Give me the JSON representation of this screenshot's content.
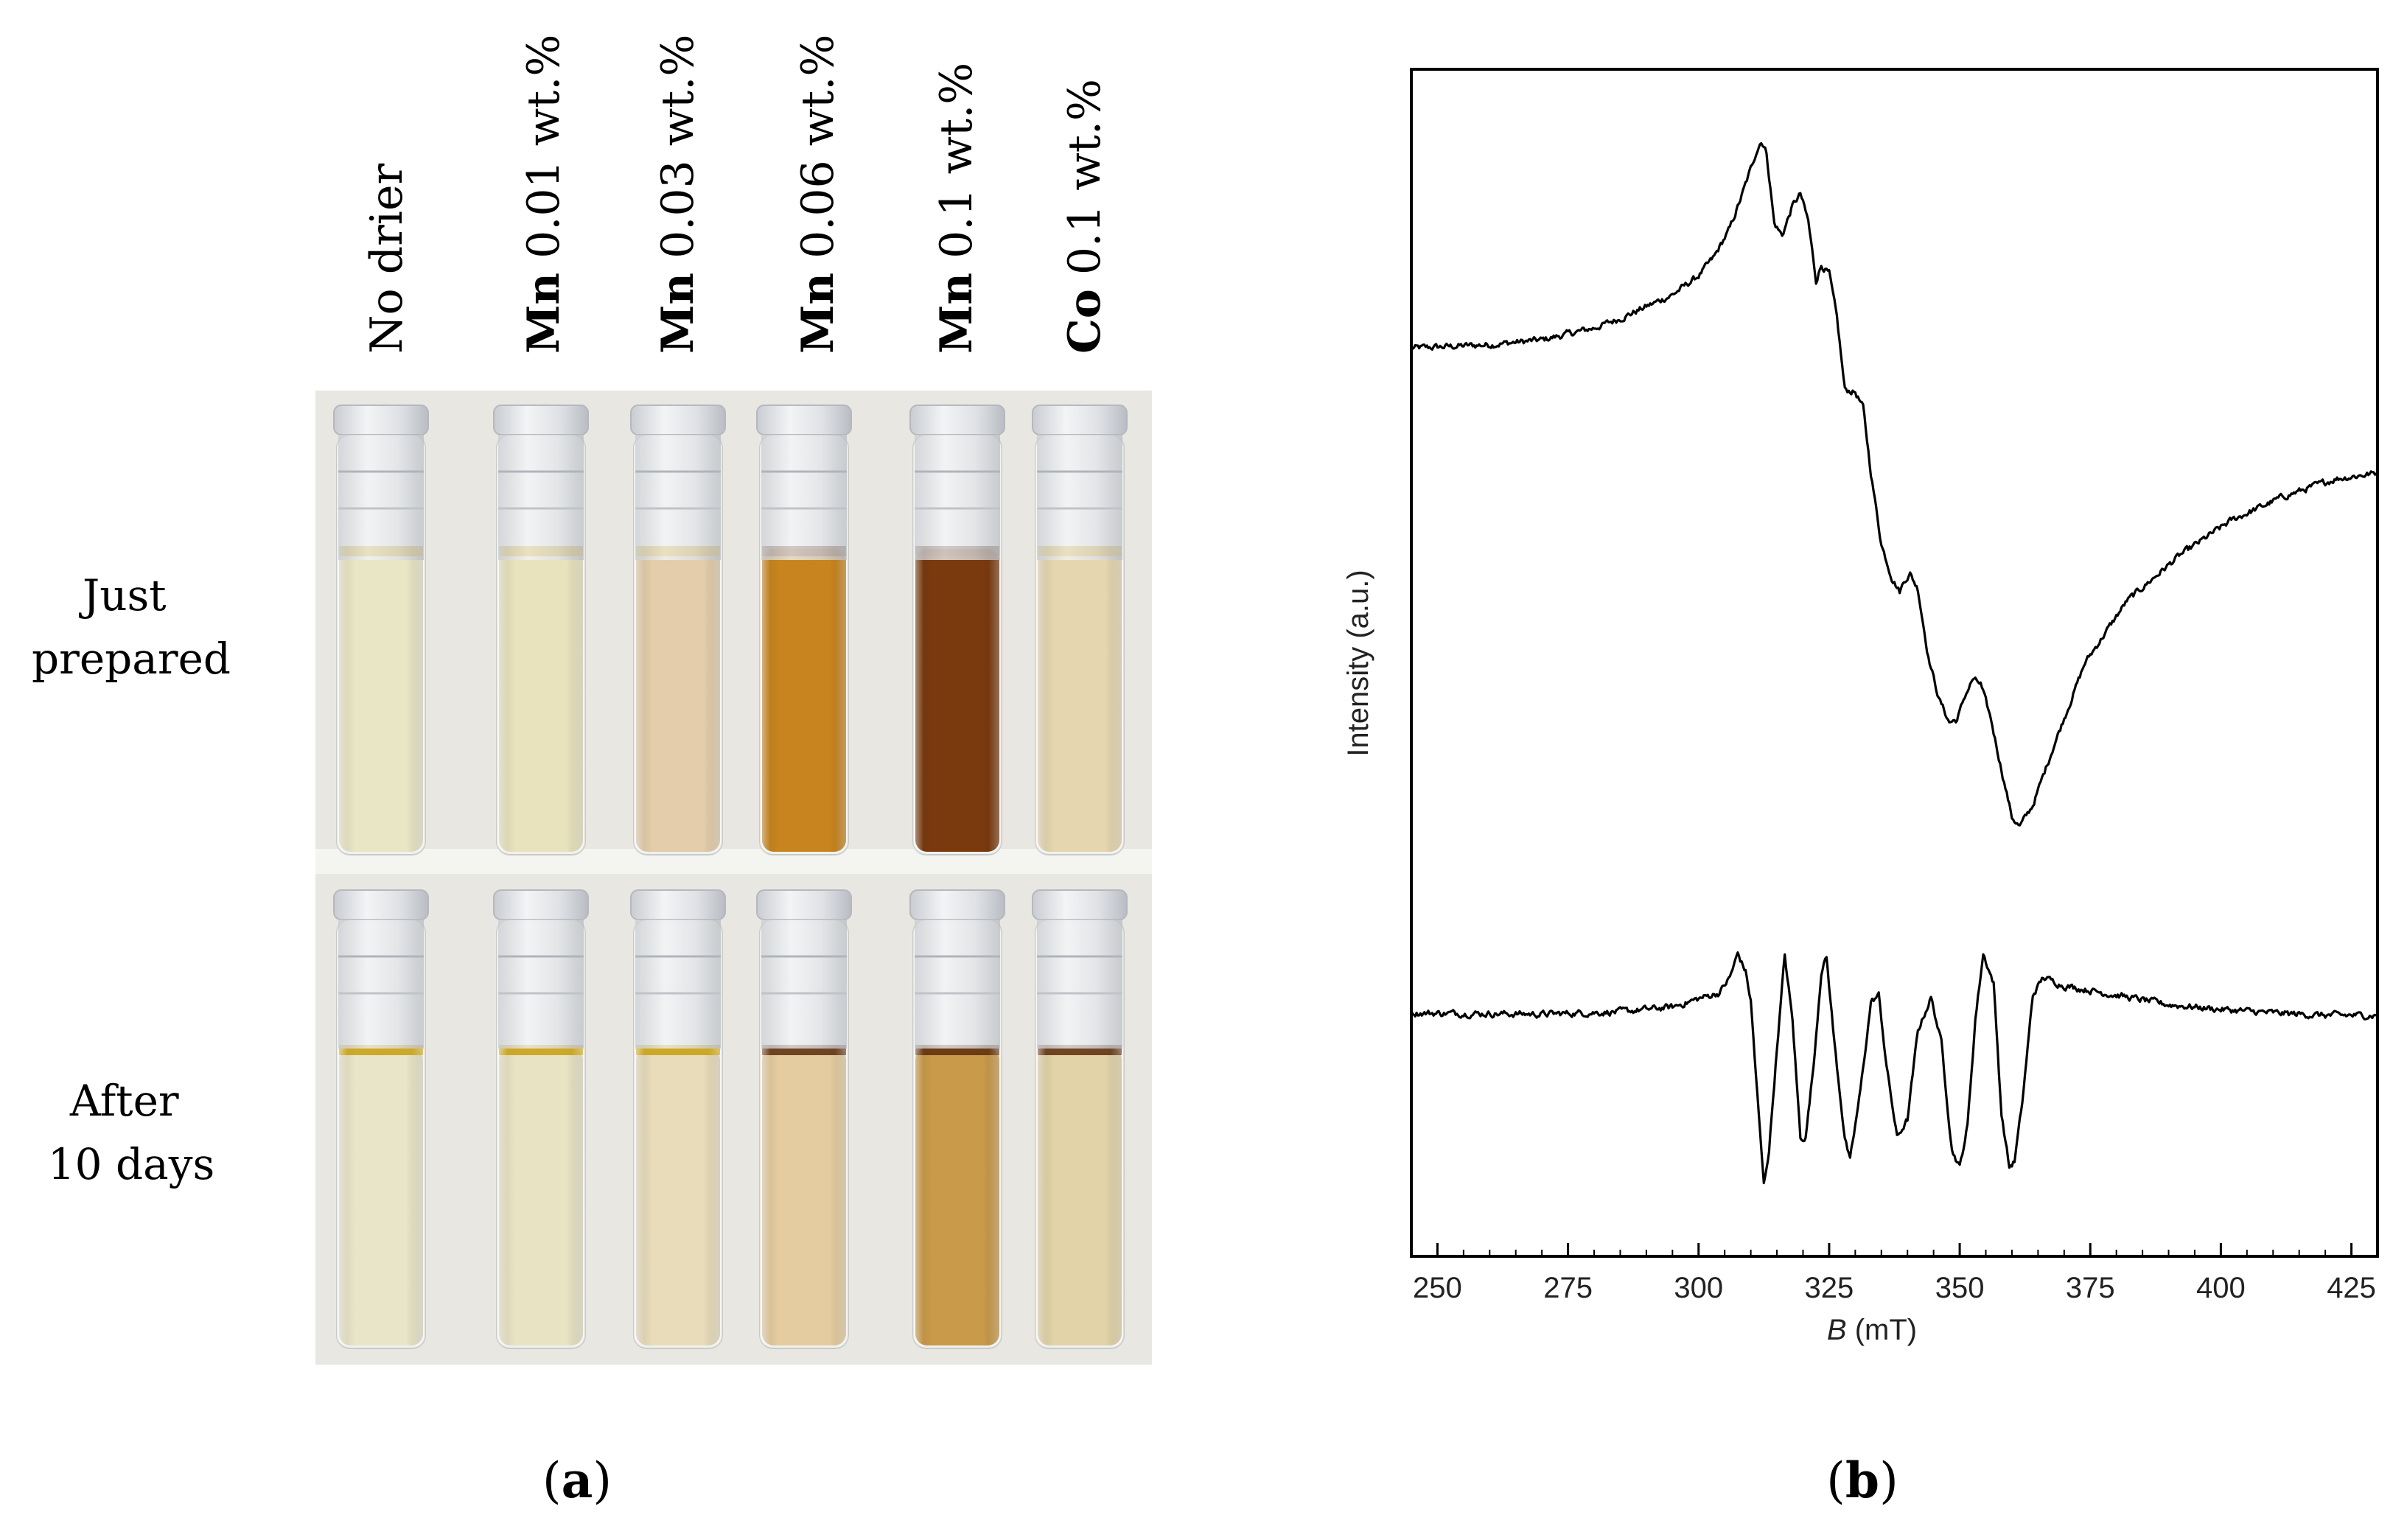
{
  "panel_a": {
    "caption_open": "(",
    "caption_letter": "a",
    "caption_close": ")",
    "columns": [
      {
        "bold": "",
        "text": "No drier"
      },
      {
        "bold": "Mn",
        "text": " 0.01 wt.%"
      },
      {
        "bold": "Mn",
        "text": " 0.03 wt.%"
      },
      {
        "bold": "Mn",
        "text": " 0.06 wt.%"
      },
      {
        "bold": "Mn",
        "text": " 0.1 wt.%"
      },
      {
        "bold": "Co",
        "text": " 0.1 wt.%"
      }
    ],
    "rows": [
      {
        "line1": "Just",
        "line2": "prepared"
      },
      {
        "line1": "After",
        "line2": "10 days"
      }
    ],
    "colors": {
      "photo_background": "#e8e7e1",
      "meniscus": "#c9a21a",
      "just_prepared_liquids": [
        "#e9e6c6",
        "#e8e3bd",
        "#e3cdaa",
        "#c8851f",
        "#7a3a0e",
        "#e6d6b0"
      ],
      "after_10_days_liquids": [
        "#e8e5c8",
        "#e8e3c3",
        "#e8dcbb",
        "#e5cca0",
        "#c99a4a",
        "#e2d3a8"
      ]
    }
  },
  "panel_b": {
    "caption_open": "(",
    "caption_letter": "b",
    "caption_close": ")"
  },
  "chart_data": {
    "type": "line",
    "title": "",
    "xlabel_italic": "B",
    "xlabel_unit": " (mT)",
    "ylabel": "Intensity (a.u.)",
    "xlim": [
      245,
      430
    ],
    "ylim": [
      0,
      1
    ],
    "xticks": [
      250,
      275,
      300,
      325,
      350,
      375,
      400,
      425
    ],
    "x_minor_step": 5,
    "grid": false,
    "series": [
      {
        "name": "upper spectrum",
        "noise": 0.005,
        "points": [
          [
            245,
            0.765
          ],
          [
            260,
            0.768
          ],
          [
            270,
            0.772
          ],
          [
            280,
            0.782
          ],
          [
            285,
            0.79
          ],
          [
            290,
            0.8
          ],
          [
            295,
            0.81
          ],
          [
            300,
            0.826
          ],
          [
            303,
            0.842
          ],
          [
            306,
            0.866
          ],
          [
            308,
            0.89
          ],
          [
            310,
            0.916
          ],
          [
            311,
            0.93
          ],
          [
            312,
            0.94
          ],
          [
            313,
            0.93
          ],
          [
            314.5,
            0.87
          ],
          [
            316,
            0.86
          ],
          [
            318,
            0.885
          ],
          [
            319.5,
            0.895
          ],
          [
            321,
            0.872
          ],
          [
            322.5,
            0.822
          ],
          [
            323.5,
            0.835
          ],
          [
            325,
            0.828
          ],
          [
            326.5,
            0.79
          ],
          [
            328,
            0.73
          ],
          [
            330,
            0.728
          ],
          [
            331.5,
            0.715
          ],
          [
            333,
            0.66
          ],
          [
            335,
            0.6
          ],
          [
            337,
            0.572
          ],
          [
            338.5,
            0.56
          ],
          [
            339.5,
            0.57
          ],
          [
            340.5,
            0.575
          ],
          [
            342,
            0.562
          ],
          [
            344,
            0.505
          ],
          [
            346,
            0.47
          ],
          [
            348,
            0.45
          ],
          [
            349.5,
            0.452
          ],
          [
            351,
            0.472
          ],
          [
            352.5,
            0.486
          ],
          [
            354,
            0.482
          ],
          [
            356,
            0.452
          ],
          [
            358,
            0.41
          ],
          [
            360,
            0.37
          ],
          [
            361.5,
            0.362
          ],
          [
            364,
            0.38
          ],
          [
            368,
            0.43
          ],
          [
            374,
            0.5
          ],
          [
            382,
            0.552
          ],
          [
            392,
            0.59
          ],
          [
            402,
            0.62
          ],
          [
            412,
            0.64
          ],
          [
            422,
            0.655
          ],
          [
            430,
            0.66
          ]
        ]
      },
      {
        "name": "lower spectrum",
        "noise": 0.005,
        "points": [
          [
            245,
            0.205
          ],
          [
            270,
            0.204
          ],
          [
            285,
            0.206
          ],
          [
            295,
            0.21
          ],
          [
            300,
            0.217
          ],
          [
            304,
            0.222
          ],
          [
            306,
            0.235
          ],
          [
            307.5,
            0.255
          ],
          [
            309,
            0.24
          ],
          [
            310,
            0.215
          ],
          [
            311.5,
            0.12
          ],
          [
            312.5,
            0.06
          ],
          [
            313.5,
            0.09
          ],
          [
            315,
            0.175
          ],
          [
            316.5,
            0.253
          ],
          [
            318,
            0.198
          ],
          [
            319.5,
            0.1
          ],
          [
            320.5,
            0.1
          ],
          [
            322,
            0.16
          ],
          [
            323.5,
            0.24
          ],
          [
            324.5,
            0.252
          ],
          [
            326,
            0.18
          ],
          [
            328,
            0.1
          ],
          [
            329,
            0.08
          ],
          [
            331,
            0.14
          ],
          [
            333,
            0.214
          ],
          [
            334.5,
            0.22
          ],
          [
            336,
            0.16
          ],
          [
            338,
            0.1
          ],
          [
            340,
            0.115
          ],
          [
            342,
            0.19
          ],
          [
            344.5,
            0.218
          ],
          [
            346.5,
            0.18
          ],
          [
            348.5,
            0.09
          ],
          [
            350,
            0.075
          ],
          [
            351.5,
            0.11
          ],
          [
            353,
            0.2
          ],
          [
            354.5,
            0.255
          ],
          [
            356.5,
            0.23
          ],
          [
            358,
            0.12
          ],
          [
            359.5,
            0.075
          ],
          [
            360.5,
            0.08
          ],
          [
            362,
            0.13
          ],
          [
            364,
            0.22
          ],
          [
            366,
            0.235
          ],
          [
            370,
            0.228
          ],
          [
            380,
            0.22
          ],
          [
            390,
            0.212
          ],
          [
            400,
            0.208
          ],
          [
            410,
            0.205
          ],
          [
            420,
            0.203
          ],
          [
            430,
            0.203
          ]
        ]
      }
    ]
  }
}
